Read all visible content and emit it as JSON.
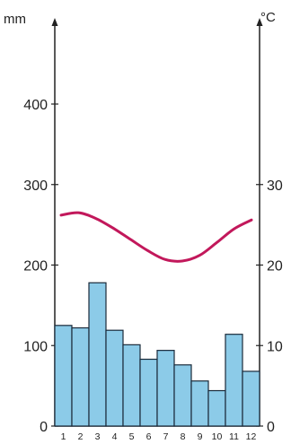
{
  "chart_data": {
    "type": "climate",
    "title": "",
    "left_axis": {
      "unit_label": "mm",
      "ticks": [
        0,
        100,
        200,
        300,
        400
      ],
      "ylim": [
        0,
        480
      ]
    },
    "right_axis": {
      "unit_label": "°C",
      "ticks": [
        0,
        10,
        20,
        30
      ],
      "ylim": [
        0,
        48
      ]
    },
    "categories": [
      "1",
      "2",
      "3",
      "4",
      "5",
      "6",
      "7",
      "8",
      "9",
      "10",
      "11",
      "12"
    ],
    "series": [
      {
        "kind": "bar",
        "axis": "left",
        "values": [
          125,
          122,
          178,
          119,
          101,
          83,
          94,
          76,
          56,
          44,
          114,
          68
        ],
        "color": "#8ccbe8",
        "stroke": "#1a2a3a"
      },
      {
        "kind": "line",
        "axis": "right",
        "values": [
          26.2,
          26.5,
          25.8,
          24.6,
          23.2,
          21.8,
          20.7,
          20.5,
          21.2,
          22.8,
          24.5,
          25.6
        ],
        "color": "#c2185b"
      }
    ],
    "grid": false
  }
}
